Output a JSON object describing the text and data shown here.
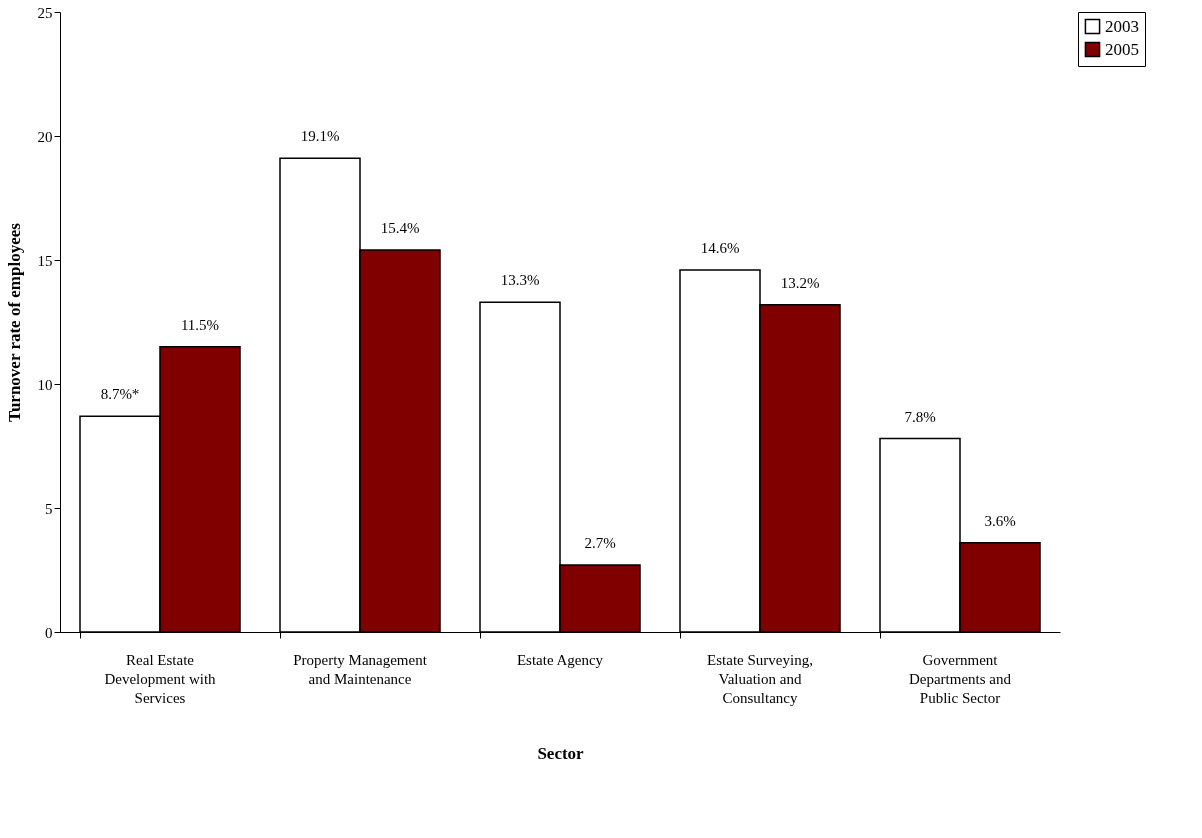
{
  "chart_data": {
    "type": "bar",
    "xlabel": "Sector",
    "ylabel": "Turnover rate of employees",
    "categories": [
      "Real Estate Development with Services",
      "Property Management and Maintenance",
      "Estate Agency",
      "Estate Surveying, Valuation and Consultancy",
      "Government Departments and Public Sector"
    ],
    "series": [
      {
        "name": "2003",
        "color": "#ffffff",
        "values": [
          8.7,
          19.1,
          13.3,
          14.6,
          7.8
        ],
        "value_labels": [
          "8.7%*",
          "19.1%",
          "13.3%",
          "14.6%",
          "7.8%"
        ]
      },
      {
        "name": "2005",
        "color": "#800000",
        "values": [
          11.5,
          15.4,
          2.7,
          13.2,
          3.6
        ],
        "value_labels": [
          "11.5%",
          "15.4%",
          "2.7%",
          "13.2%",
          "3.6%"
        ]
      }
    ],
    "ylim": [
      0,
      25
    ],
    "yticks": [
      0,
      5,
      10,
      15,
      20,
      25
    ],
    "grid": false,
    "legend": "right"
  }
}
